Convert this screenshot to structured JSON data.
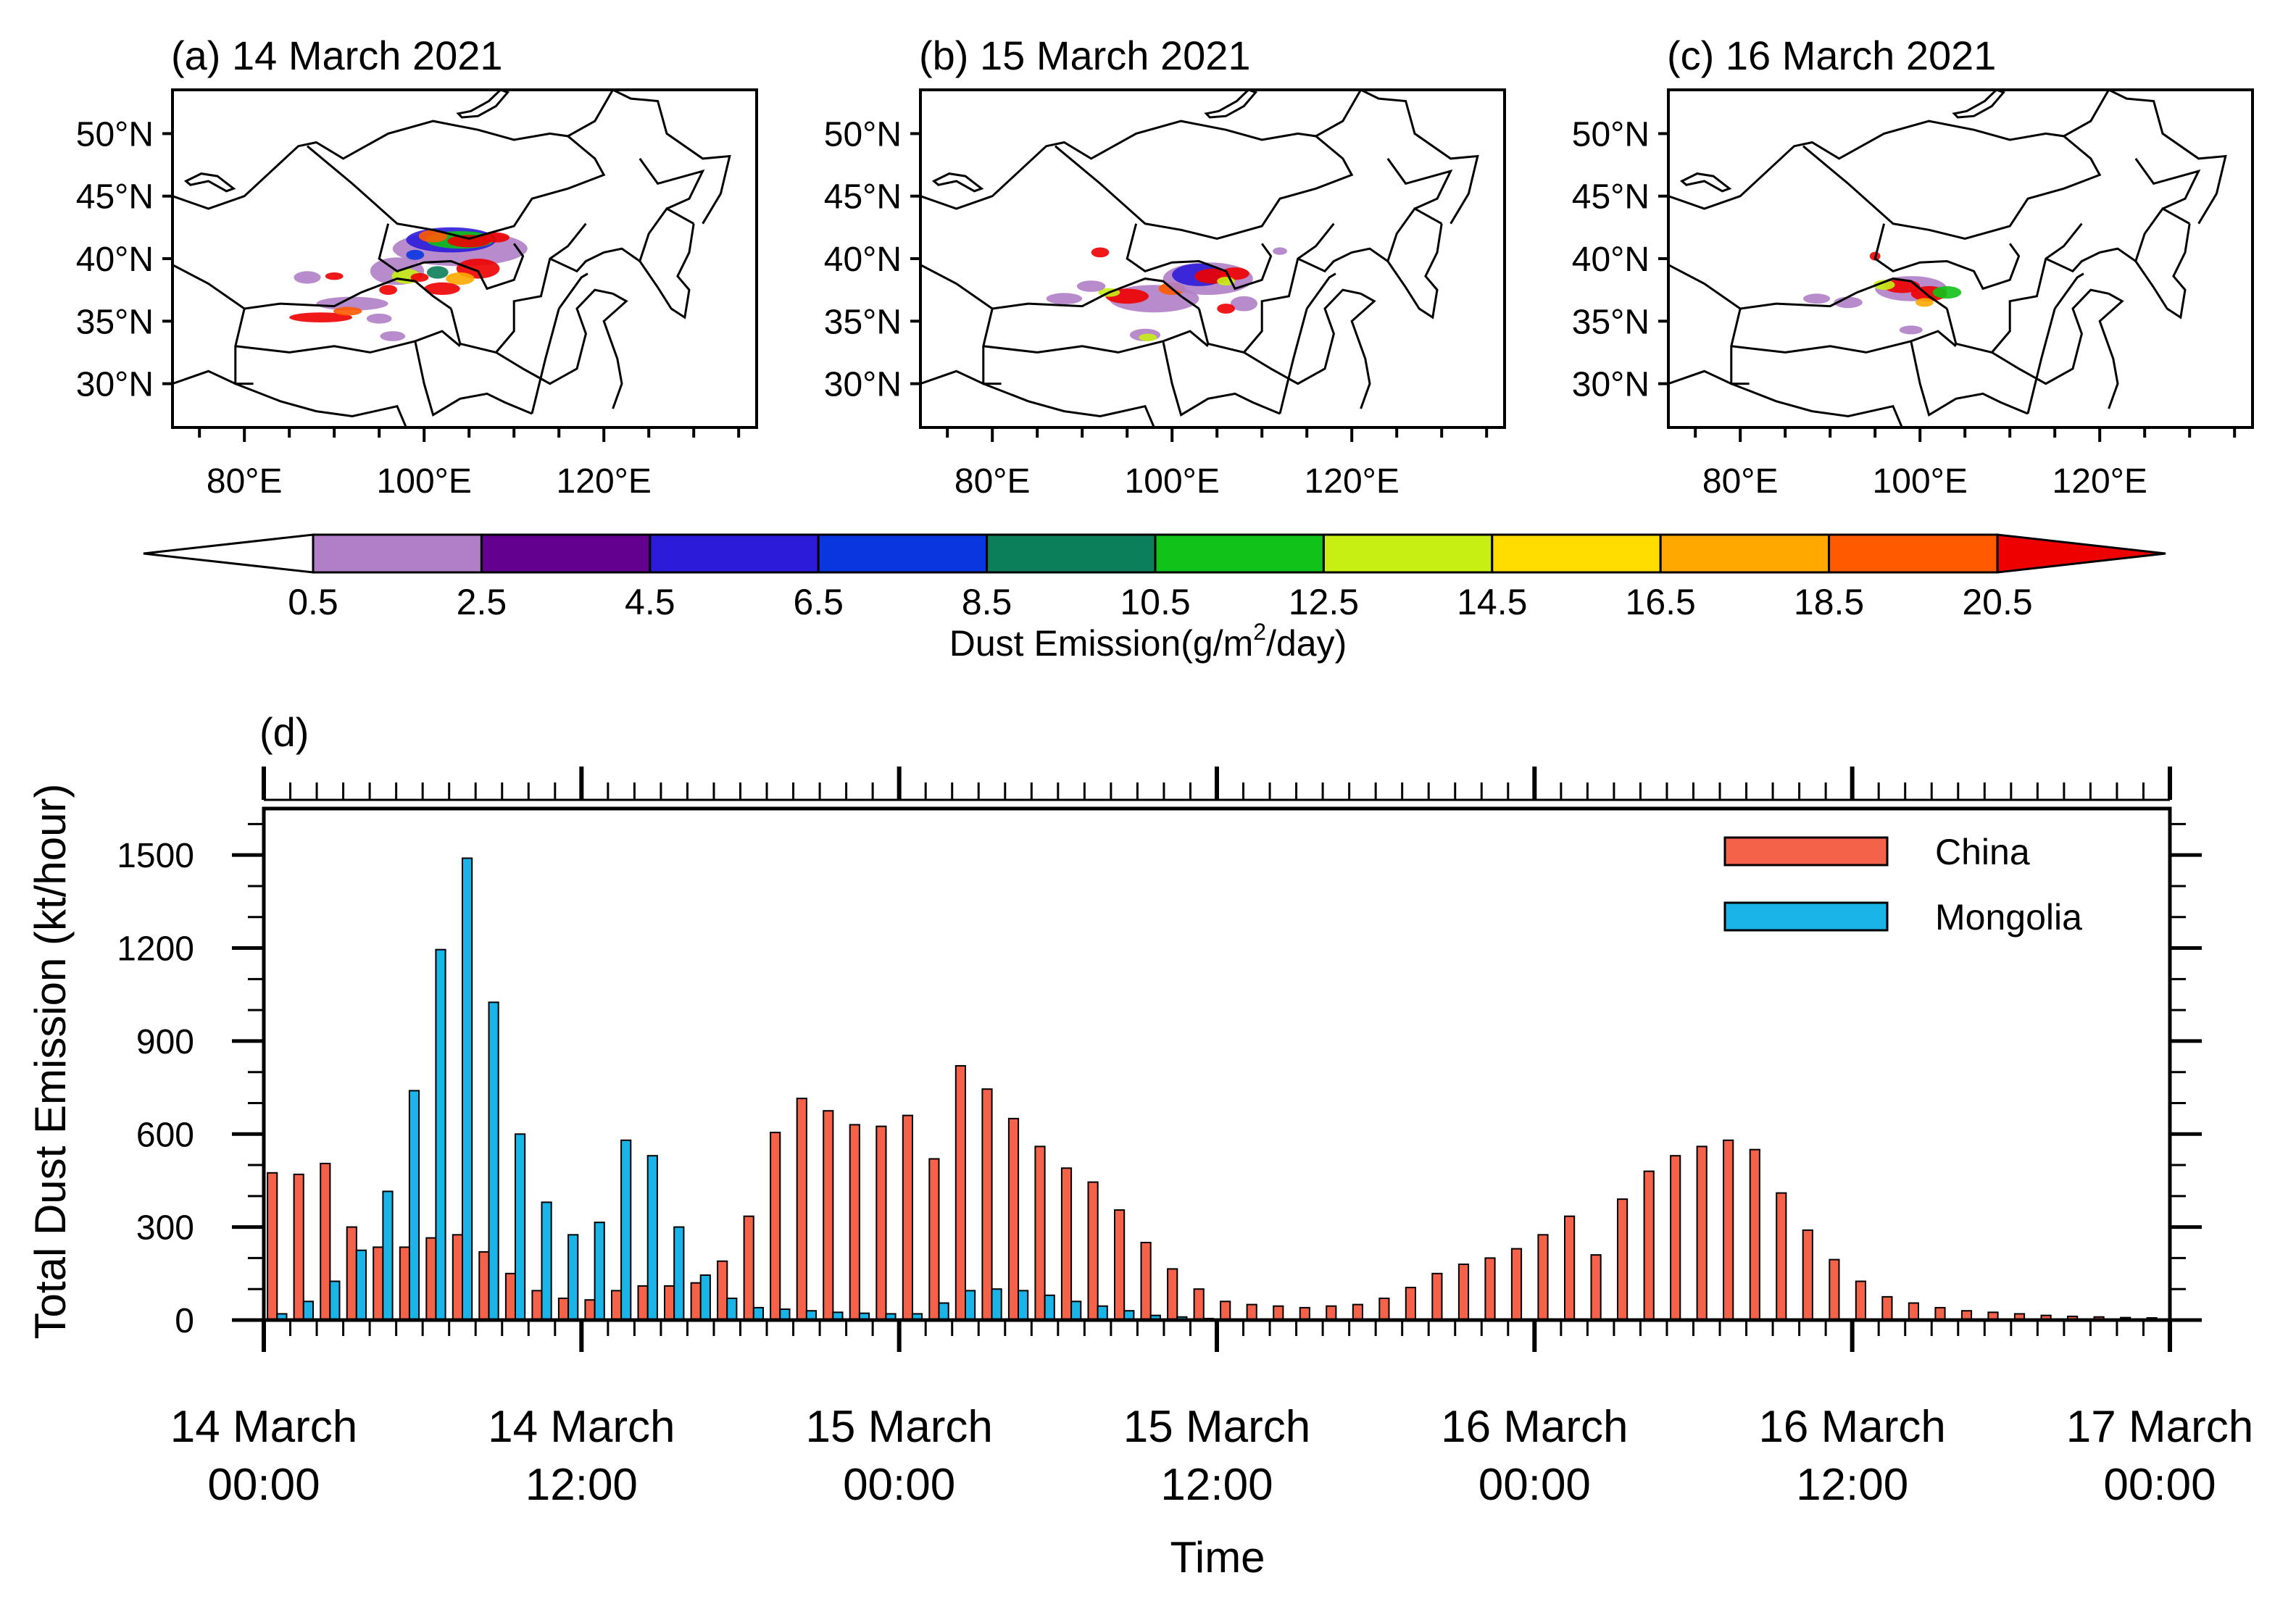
{
  "maps": [
    {
      "label": "(a) 14 March 2021"
    },
    {
      "label": "(b) 15 March 2021"
    },
    {
      "label": "(c) 16 March 2021"
    }
  ],
  "map_axes": {
    "lat_ticks": [
      "50°N",
      "45°N",
      "40°N",
      "35°N",
      "30°N"
    ],
    "lat_values": [
      50,
      45,
      40,
      35,
      30
    ],
    "lon_ticks": [
      "80°E",
      "100°E",
      "120°E"
    ],
    "lon_values": [
      80,
      100,
      120
    ],
    "lon_range": [
      72,
      137
    ],
    "lat_range": [
      26.5,
      53.5
    ]
  },
  "colorbar": {
    "title_main": "Dust Emission(g/m",
    "title_sup": "2",
    "title_end": "/day)",
    "levels": [
      "0.5",
      "2.5",
      "4.5",
      "6.5",
      "8.5",
      "10.5",
      "12.5",
      "14.5",
      "16.5",
      "18.5",
      "20.5"
    ],
    "colors": [
      "#ffffff",
      "#b07fc7",
      "#64008f",
      "#2c1cd9",
      "#0a36e0",
      "#0b7e5a",
      "#11c218",
      "#c7ef14",
      "#ffdd00",
      "#ffa800",
      "#ff5a00",
      "#ee0000"
    ]
  },
  "chart_data": {
    "type": "bar",
    "panel_label": "(d)",
    "ylabel": "Total Dust Emission (kt/hour)",
    "xlabel": "Time",
    "ylim": [
      0,
      1650
    ],
    "yticks": [
      0,
      300,
      600,
      900,
      1200,
      1500
    ],
    "ytick_labels": [
      "0",
      "300",
      "600",
      "900",
      "1200",
      "1500"
    ],
    "x_start": "14 March 00:00",
    "interval_hours": 1,
    "xtick_labels": [
      [
        "14 March",
        "00:00"
      ],
      [
        "14 March",
        "12:00"
      ],
      [
        "15 March",
        "00:00"
      ],
      [
        "15 March",
        "12:00"
      ],
      [
        "16 March",
        "00:00"
      ],
      [
        "16 March",
        "12:00"
      ],
      [
        "17 March",
        "00:00"
      ]
    ],
    "legend_position": "top-right",
    "series": [
      {
        "name": "China",
        "color": "#f4624a",
        "values": [
          475,
          470,
          505,
          300,
          235,
          235,
          265,
          275,
          220,
          150,
          95,
          70,
          65,
          95,
          110,
          110,
          120,
          190,
          335,
          605,
          715,
          675,
          630,
          625,
          660,
          520,
          820,
          745,
          650,
          560,
          490,
          445,
          355,
          250,
          165,
          100,
          60,
          50,
          45,
          40,
          45,
          50,
          70,
          105,
          150,
          180,
          200,
          230,
          275,
          335,
          210,
          390,
          480,
          530,
          560,
          580,
          550,
          410,
          290,
          195,
          125,
          75,
          55,
          40,
          30,
          25,
          20,
          15,
          12,
          10,
          8,
          7
        ]
      },
      {
        "name": "Mongolia",
        "color": "#1bb4e8",
        "values": [
          20,
          60,
          125,
          225,
          415,
          740,
          1195,
          1490,
          1025,
          600,
          380,
          275,
          315,
          580,
          530,
          300,
          145,
          70,
          40,
          35,
          30,
          25,
          22,
          20,
          20,
          55,
          95,
          100,
          95,
          80,
          60,
          45,
          30,
          15,
          10,
          5,
          3,
          2,
          2,
          1,
          1,
          1,
          1,
          1,
          1,
          1,
          1,
          1,
          1,
          1,
          1,
          1,
          1,
          1,
          1,
          1,
          1,
          1,
          1,
          1,
          1,
          1,
          1,
          1,
          1,
          1,
          1,
          1,
          1,
          1,
          1,
          1
        ]
      }
    ]
  }
}
